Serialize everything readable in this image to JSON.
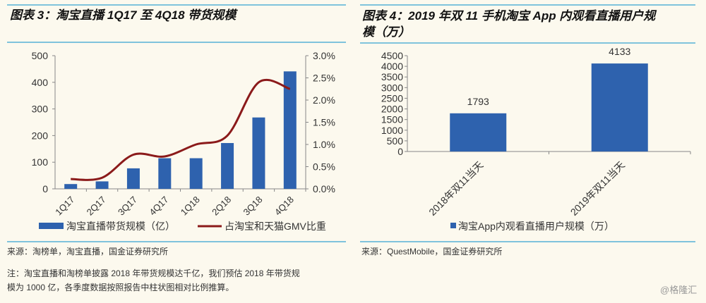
{
  "watermark": "@格隆汇",
  "chart_data": [
    {
      "type": "bar+line",
      "title": "图表 3：淘宝直播 1Q17 至 4Q18 带货规模",
      "categories": [
        "1Q17",
        "2Q17",
        "3Q17",
        "4Q17",
        "1Q18",
        "2Q18",
        "3Q18",
        "4Q18"
      ],
      "series": [
        {
          "name": "淘宝直播带货规模（亿）",
          "type": "bar",
          "axis": "left",
          "color": "#2e62ae",
          "values": [
            18,
            28,
            77,
            115,
            115,
            172,
            268,
            441
          ]
        },
        {
          "name": "占淘宝和天猫GMV比重",
          "type": "line",
          "axis": "right",
          "color": "#8b1a1a",
          "values": [
            0.22,
            0.25,
            0.77,
            0.73,
            1.0,
            1.2,
            2.4,
            2.25
          ]
        }
      ],
      "ylim": [
        0,
        500
      ],
      "yticks": [
        "0",
        "100",
        "200",
        "300",
        "400",
        "500"
      ],
      "y2lim": [
        0,
        3.0
      ],
      "y2ticks": [
        "0.0%",
        "0.5%",
        "1.0%",
        "1.5%",
        "2.0%",
        "2.5%",
        "3.0%"
      ],
      "legend": "bottom",
      "grid": false,
      "source": "来源：淘榜单，淘宝直播，国金证券研究所",
      "note_lines": [
        "注：淘宝直播和淘榜单披露 2018 年带货规模达千亿，我们预估 2018 年带货规",
        "模为 1000 亿，各季度数据按照报告中柱状图相对比例推算。"
      ]
    },
    {
      "type": "bar",
      "title_lines": [
        "图表 4：2019 年双 11 手机淘宝 App 内观看直播用户规",
        "模（万）"
      ],
      "categories": [
        "2018年双11当天",
        "2019年双11当天"
      ],
      "series": [
        {
          "name": "淘宝App内观看直播用户规模（万）",
          "color": "#2e62ae",
          "values": [
            1793,
            4133
          ]
        }
      ],
      "data_labels": [
        "1793",
        "4133"
      ],
      "ylim": [
        0,
        4500
      ],
      "yticks": [
        "0",
        "500",
        "1000",
        "1500",
        "2000",
        "2500",
        "3000",
        "3500",
        "4000",
        "4500"
      ],
      "legend": "bottom",
      "grid": false,
      "source": "来源：QuestMobile，国金证券研究所"
    }
  ]
}
